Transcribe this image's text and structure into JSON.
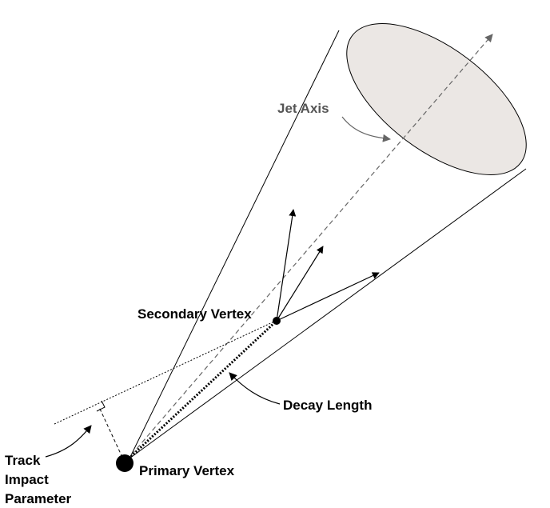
{
  "labels": {
    "jet_axis": "Jet Axis",
    "secondary_vertex": "Secondary Vertex",
    "decay_length": "Decay Length",
    "primary_vertex": "Primary Vertex",
    "track_impact_parameter": [
      "Track",
      "Impact",
      "Parameter"
    ]
  },
  "colors": {
    "stroke": "#000000",
    "jet_axis_text": "#555555",
    "jet_axis_line": "#666666",
    "cone_base_fill": "#ebe7e4"
  }
}
